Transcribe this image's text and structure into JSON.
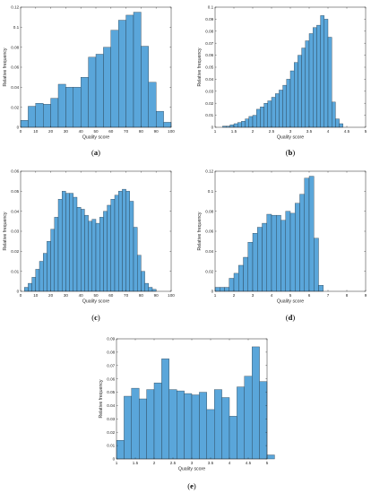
{
  "colors": {
    "bar_fill": "#5aa6da",
    "bar_stroke": "#1f2f3c",
    "axis": "#262626"
  },
  "chart_data": [
    {
      "panel": "(a)",
      "label_letter": "a",
      "type": "bar",
      "xlabel": "Quality score",
      "ylabel": "Relative frequency",
      "xlim": [
        0,
        100
      ],
      "ylim": [
        0,
        0.12
      ],
      "xticks": [
        0,
        10,
        20,
        30,
        40,
        50,
        60,
        70,
        80,
        90,
        100
      ],
      "xtick_labels": [
        "0",
        "10",
        "20",
        "30",
        "40",
        "50",
        "60",
        "70",
        "80",
        "90",
        "100"
      ],
      "yticks": [
        0,
        0.02,
        0.04,
        0.06,
        0.08,
        0.1,
        0.12
      ],
      "ytick_labels": [
        "0",
        "0.02",
        "0.04",
        "0.06",
        "0.08",
        "0.1",
        "0.12"
      ],
      "bin_start": 0,
      "bin_width": 5,
      "values": [
        0.007,
        0.021,
        0.024,
        0.023,
        0.029,
        0.043,
        0.04,
        0.04,
        0.05,
        0.07,
        0.073,
        0.08,
        0.097,
        0.107,
        0.112,
        0.115,
        0.081,
        0.045,
        0.016,
        0.005
      ],
      "grid": false
    },
    {
      "panel": "(b)",
      "label_letter": "b",
      "type": "bar",
      "xlabel": "Quality score",
      "ylabel": "Relative frequency",
      "xlim": [
        1,
        5
      ],
      "ylim": [
        0,
        0.1
      ],
      "xticks": [
        1,
        1.5,
        2,
        2.5,
        3,
        3.5,
        4,
        4.5,
        5
      ],
      "xtick_labels": [
        "1",
        "1.5",
        "2",
        "2.5",
        "3",
        "3.5",
        "4",
        "4.5",
        "5"
      ],
      "yticks": [
        0,
        0.01,
        0.02,
        0.03,
        0.04,
        0.05,
        0.06,
        0.07,
        0.08,
        0.09,
        0.1
      ],
      "ytick_labels": [
        "0",
        "0.01",
        "0.02",
        "0.03",
        "0.04",
        "0.05",
        "0.06",
        "0.07",
        "0.08",
        "0.09",
        "0.1"
      ],
      "bin_start": 1.2,
      "bin_width": 0.1,
      "values": [
        0.001,
        0.001,
        0.002,
        0.003,
        0.004,
        0.005,
        0.007,
        0.009,
        0.01,
        0.015,
        0.017,
        0.02,
        0.022,
        0.025,
        0.028,
        0.031,
        0.035,
        0.04,
        0.047,
        0.054,
        0.06,
        0.066,
        0.072,
        0.078,
        0.083,
        0.085,
        0.093,
        0.09,
        0.075,
        0.021,
        0.007,
        0.003
      ],
      "grid": false
    },
    {
      "panel": "(c)",
      "label_letter": "c",
      "type": "bar",
      "xlabel": "Quality score",
      "ylabel": "Relative frequency",
      "xlim": [
        0,
        100
      ],
      "ylim": [
        0,
        0.06
      ],
      "xticks": [
        0,
        10,
        20,
        30,
        40,
        50,
        60,
        70,
        80,
        90,
        100
      ],
      "xtick_labels": [
        "0",
        "10",
        "20",
        "30",
        "40",
        "50",
        "60",
        "70",
        "80",
        "90",
        "100"
      ],
      "yticks": [
        0,
        0.01,
        0.02,
        0.03,
        0.04,
        0.05,
        0.06
      ],
      "ytick_labels": [
        "0",
        "0.01",
        "0.02",
        "0.03",
        "0.04",
        "0.05",
        "0.06"
      ],
      "bin_start": 2.5,
      "bin_width": 2.5,
      "values": [
        0.002,
        0.004,
        0.007,
        0.011,
        0.015,
        0.019,
        0.025,
        0.031,
        0.037,
        0.046,
        0.05,
        0.049,
        0.049,
        0.047,
        0.042,
        0.041,
        0.038,
        0.035,
        0.036,
        0.034,
        0.037,
        0.04,
        0.043,
        0.046,
        0.048,
        0.05,
        0.051,
        0.05,
        0.045,
        0.032,
        0.018,
        0.01,
        0.004,
        0.002,
        0.001
      ],
      "grid": false
    },
    {
      "panel": "(d)",
      "label_letter": "d",
      "type": "bar",
      "xlabel": "Quality score",
      "ylabel": "Relative frequency",
      "xlim": [
        1,
        9
      ],
      "ylim": [
        0,
        0.12
      ],
      "xticks": [
        1,
        2,
        3,
        4,
        5,
        6,
        7,
        8,
        9
      ],
      "xtick_labels": [
        "1",
        "2",
        "3",
        "4",
        "5",
        "6",
        "7",
        "8",
        "9"
      ],
      "yticks": [
        0,
        0.02,
        0.04,
        0.06,
        0.08,
        0.1,
        0.12
      ],
      "ytick_labels": [
        "0",
        "0.02",
        "0.04",
        "0.06",
        "0.08",
        "0.1",
        "0.12"
      ],
      "bin_start": 1,
      "bin_width": 0.25,
      "values": [
        0.004,
        0.004,
        0.004,
        0.013,
        0.018,
        0.026,
        0.034,
        0.049,
        0.058,
        0.064,
        0.068,
        0.077,
        0.076,
        0.076,
        0.071,
        0.08,
        0.078,
        0.088,
        0.097,
        0.113,
        0.115,
        0.053,
        0.006
      ],
      "grid": false
    },
    {
      "panel": "(e)",
      "label_letter": "e",
      "type": "bar",
      "xlabel": "Quality score",
      "ylabel": "Relative frequency",
      "xlim": [
        1,
        5
      ],
      "ylim": [
        0,
        0.09
      ],
      "xticks": [
        1,
        1.5,
        2,
        2.5,
        3,
        3.5,
        4,
        4.5,
        5
      ],
      "xtick_labels": [
        "1",
        "1.5",
        "2",
        "2.5",
        "3",
        "3.5",
        "4",
        "4.5",
        "5"
      ],
      "yticks": [
        0,
        0.01,
        0.02,
        0.03,
        0.04,
        0.05,
        0.06,
        0.07,
        0.08,
        0.09
      ],
      "ytick_labels": [
        "0",
        "0.01",
        "0.02",
        "0.03",
        "0.04",
        "0.05",
        "0.06",
        "0.07",
        "0.08",
        "0.09"
      ],
      "bin_start": 1,
      "bin_width": 0.2,
      "values": [
        0.014,
        0.047,
        0.053,
        0.045,
        0.052,
        0.057,
        0.075,
        0.052,
        0.051,
        0.049,
        0.048,
        0.05,
        0.037,
        0.052,
        0.046,
        0.032,
        0.054,
        0.062,
        0.084,
        0.058,
        0.003
      ],
      "grid": false
    }
  ]
}
